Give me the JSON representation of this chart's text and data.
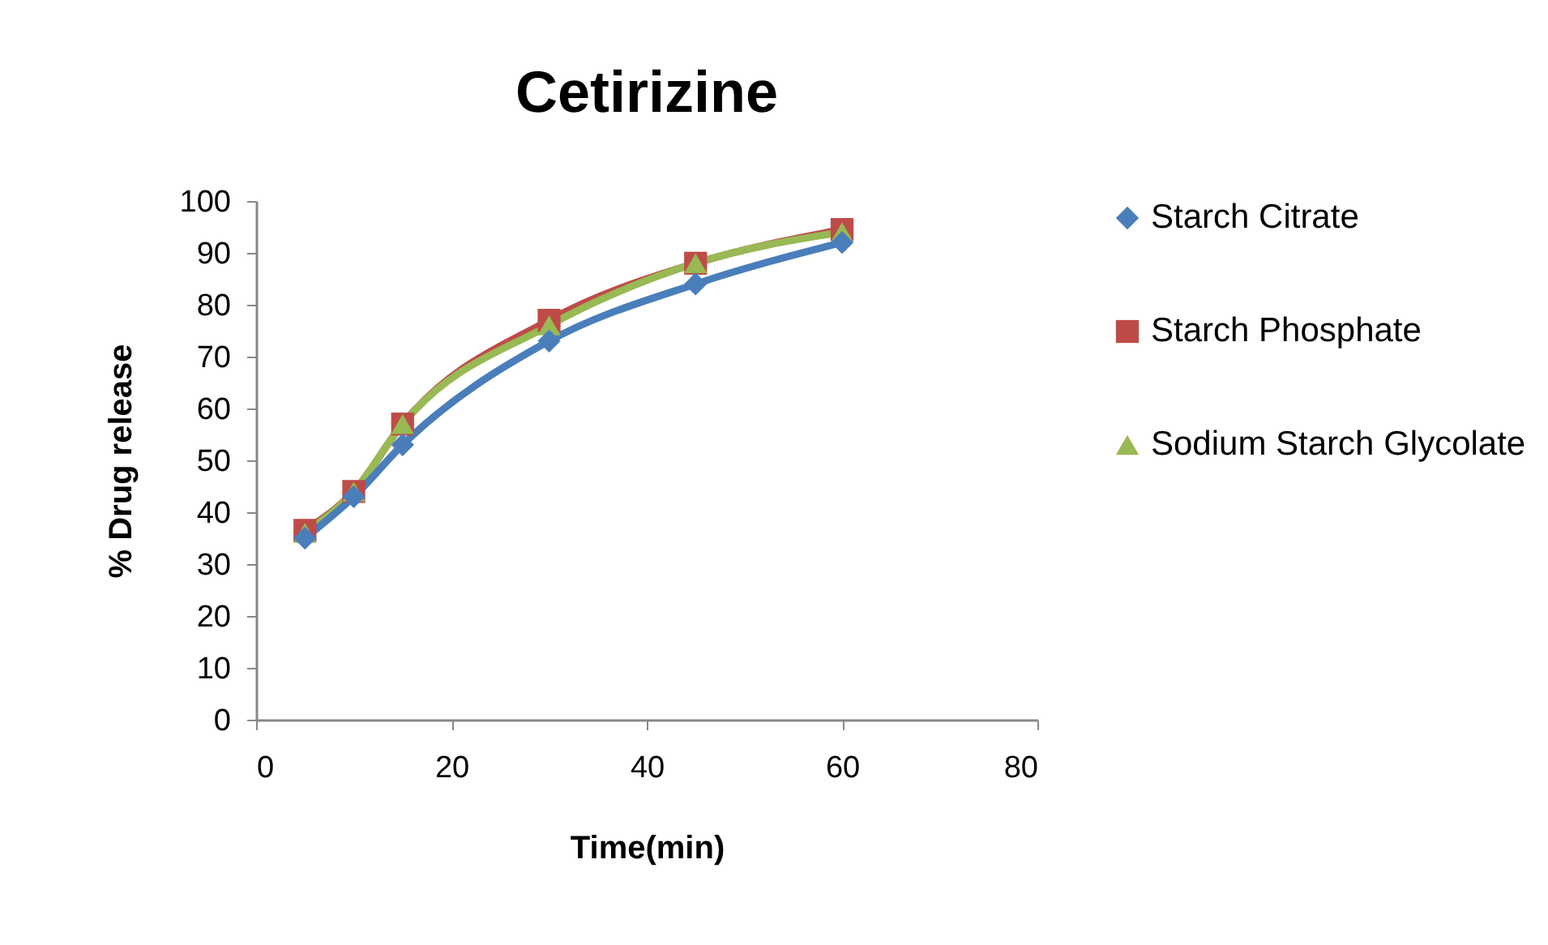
{
  "chart_data": {
    "type": "line",
    "title": "Cetirizine",
    "xlabel": "Time(min)",
    "ylabel": "% Drug release",
    "x": [
      5,
      10,
      15,
      30,
      45,
      60
    ],
    "series": [
      {
        "name": "Starch Citrate",
        "color": "#4a7ebb",
        "marker": "diamond",
        "values": [
          35,
          43,
          53,
          73,
          84,
          92
        ]
      },
      {
        "name": "Starch Phosphate",
        "color": "#be4b48",
        "marker": "square",
        "values": [
          36.5,
          44,
          57,
          77,
          88,
          94.5
        ]
      },
      {
        "name": "Sodium Starch Glycolate",
        "color": "#98b954",
        "marker": "triangle",
        "values": [
          36,
          44,
          57,
          76,
          88,
          94
        ]
      }
    ],
    "xlim": [
      0,
      80
    ],
    "xticks": [
      0,
      20,
      40,
      60,
      80
    ],
    "ylim": [
      0,
      100
    ],
    "yticks": [
      0,
      10,
      20,
      30,
      40,
      50,
      60,
      70,
      80,
      90,
      100
    ],
    "grid": false,
    "legend": "right",
    "line_style": "solid"
  }
}
